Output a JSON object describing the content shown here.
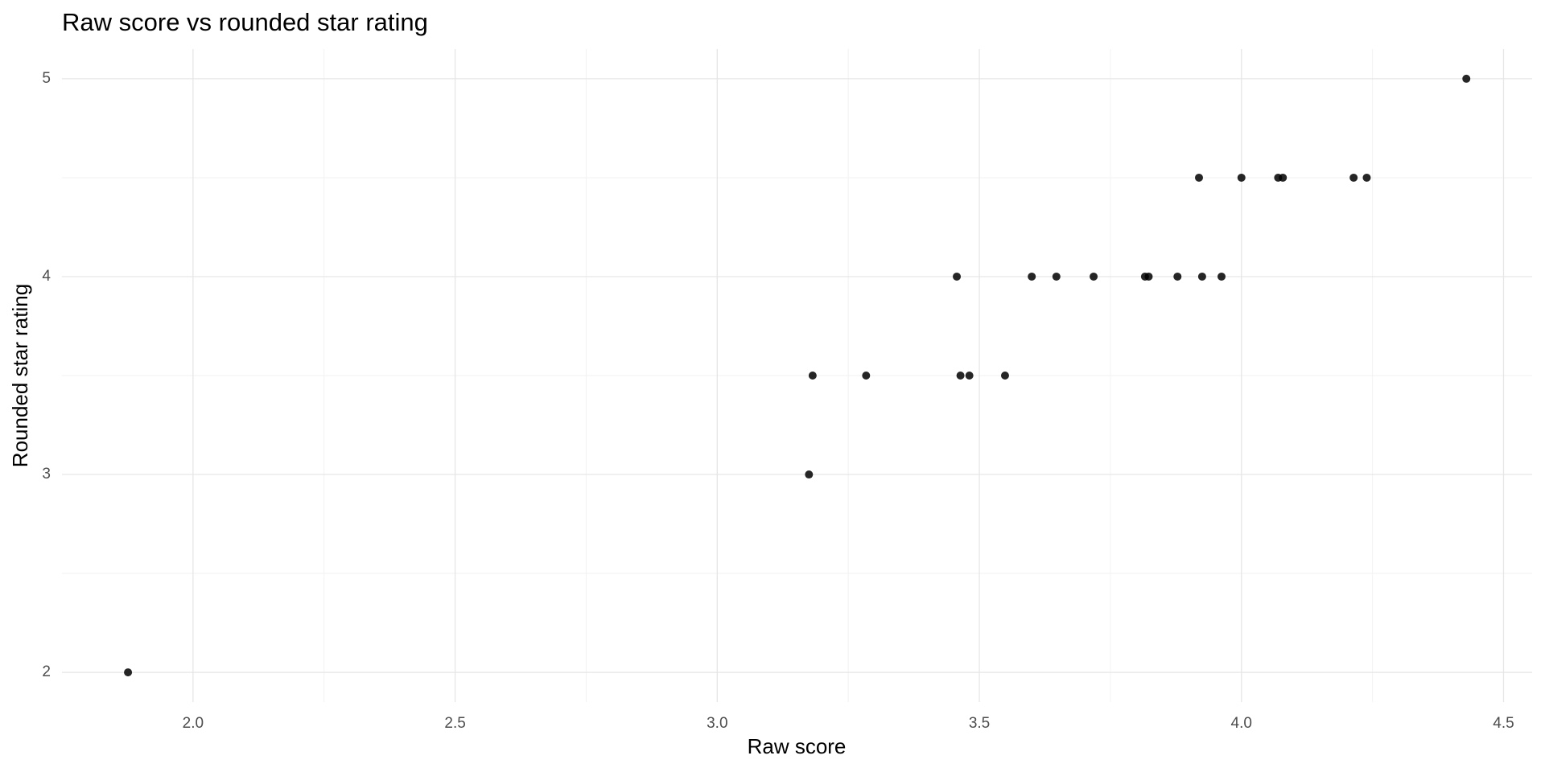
{
  "chart_data": {
    "type": "scatter",
    "title": "Raw score vs rounded star rating",
    "x_label": "Raw score",
    "y_label": "Rounded star rating",
    "color": "#000000",
    "grid": true,
    "xlim": [
      1.75,
      4.5545
    ],
    "ylim": [
      1.85,
      5.15
    ],
    "xticks": [
      {
        "value": 2,
        "label": "2.0"
      },
      {
        "value": 2.5,
        "label": "2.5"
      },
      {
        "value": 3,
        "label": "3.0"
      },
      {
        "value": 3.5,
        "label": "3.5"
      },
      {
        "value": 4,
        "label": "4.0"
      },
      {
        "value": 4.5,
        "label": "4.5"
      }
    ],
    "yticks": [
      2,
      3,
      4,
      5
    ],
    "xminor": [
      2.25,
      2.75,
      3.25,
      3.75,
      4.25
    ],
    "yminor": [
      2.5,
      3.5,
      4.5
    ],
    "x": [
      1.876,
      3.175,
      3.182,
      3.284,
      3.464,
      3.481,
      3.549,
      3.457,
      3.6,
      3.647,
      3.718,
      3.816,
      3.823,
      3.878,
      3.925,
      3.962,
      3.919,
      4.0,
      4.07,
      4.079,
      4.214,
      4.239,
      4.429
    ],
    "values": [
      2,
      3,
      3.5,
      3.5,
      3.5,
      3.5,
      3.5,
      4,
      4,
      4,
      4,
      4,
      4,
      4,
      4,
      4,
      4.5,
      4.5,
      4.5,
      4.5,
      4.5,
      4.5,
      5
    ]
  }
}
